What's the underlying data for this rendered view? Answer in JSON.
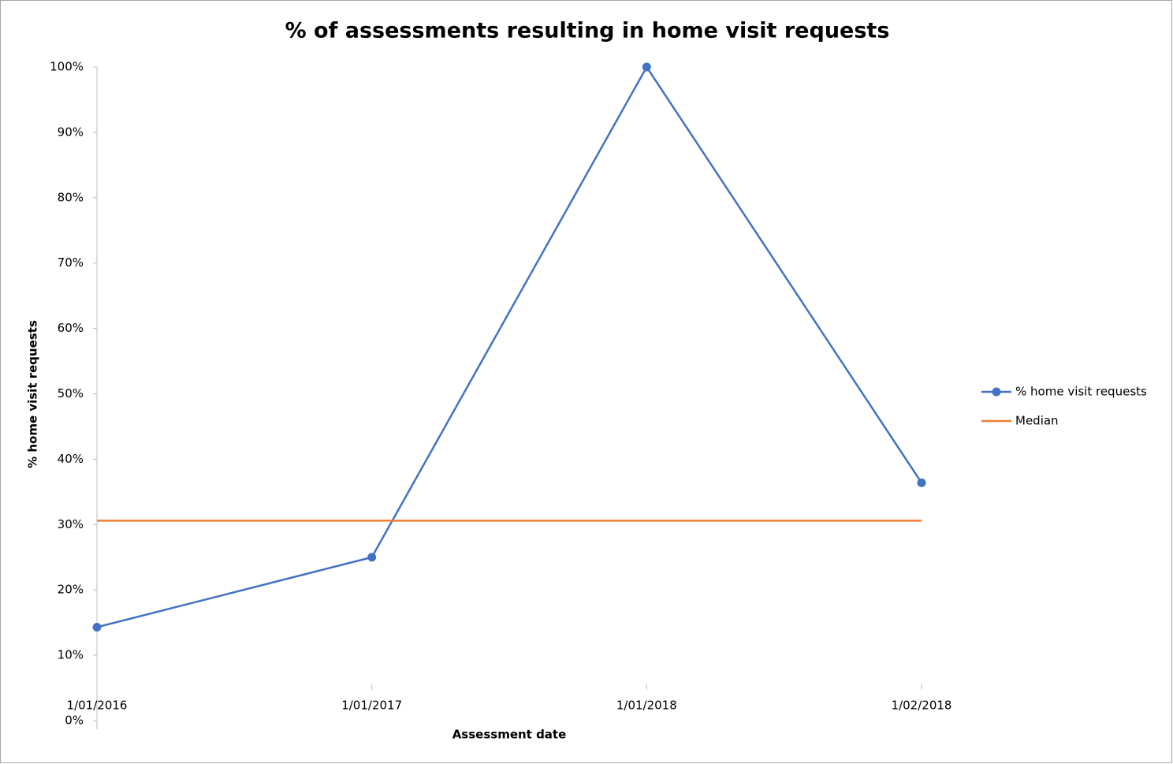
{
  "chart_data": {
    "type": "line",
    "title": "% of assessments resulting in home visit requests",
    "x_label": "Assessment date",
    "y_label": "% home visit requests",
    "categories": [
      "1/01/2016",
      "1/01/2017",
      "1/01/2018",
      "1/02/2018"
    ],
    "series": [
      {
        "name": "% home visit requests",
        "color": "#4472c4",
        "values": [
          14.3,
          25,
          100,
          36.4
        ],
        "markers": true
      },
      {
        "name": "Median",
        "color": "#ed7d31",
        "values": [
          30.6,
          30.6,
          30.6,
          30.6
        ],
        "markers": false
      }
    ],
    "ylim": [
      0,
      100
    ],
    "yticks": [
      {
        "value": 0,
        "label": "0%"
      },
      {
        "value": 10,
        "label": "10%"
      },
      {
        "value": 20,
        "label": "20%"
      },
      {
        "value": 30,
        "label": "30%"
      },
      {
        "value": 40,
        "label": "40%"
      },
      {
        "value": 50,
        "label": "50%"
      },
      {
        "value": 60,
        "label": "60%"
      },
      {
        "value": 70,
        "label": "70%"
      },
      {
        "value": 80,
        "label": "80%"
      },
      {
        "value": 90,
        "label": "90%"
      },
      {
        "value": 100,
        "label": "100%"
      }
    ],
    "grid": false,
    "legend": "right"
  }
}
